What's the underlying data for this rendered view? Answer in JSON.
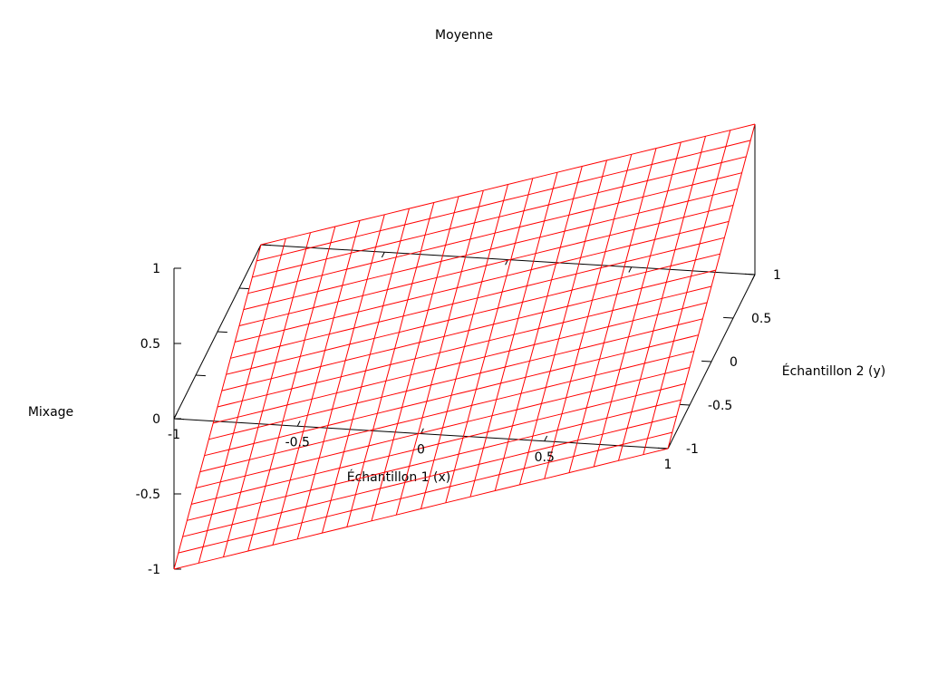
{
  "chart_data": {
    "type": "surface",
    "title": "Moyenne",
    "xlabel": "Échantillon 1 (x)",
    "ylabel": "Échantillon 2 (y)",
    "zlabel": "Mixage",
    "xlim": [
      -1,
      1
    ],
    "ylim": [
      -1,
      1
    ],
    "zlim": [
      -1,
      1
    ],
    "x_ticks": [
      "-1",
      "-0.5",
      "0",
      "0.5",
      "1"
    ],
    "y_ticks": [
      "-1",
      "-0.5",
      "0",
      "0.5",
      "1"
    ],
    "z_ticks": [
      "-1",
      "-0.5",
      "0",
      "0.5",
      "1"
    ],
    "function": "z = (x + y) / 2",
    "grid_samples": 21,
    "corners": [
      {
        "x": -1,
        "y": -1,
        "z": -1
      },
      {
        "x": 1,
        "y": -1,
        "z": 0
      },
      {
        "x": -1,
        "y": 1,
        "z": 0
      },
      {
        "x": 1,
        "y": 1,
        "z": 1
      }
    ],
    "surface_color": "#ff0000",
    "axis_color": "#000000",
    "background": "#ffffff"
  }
}
